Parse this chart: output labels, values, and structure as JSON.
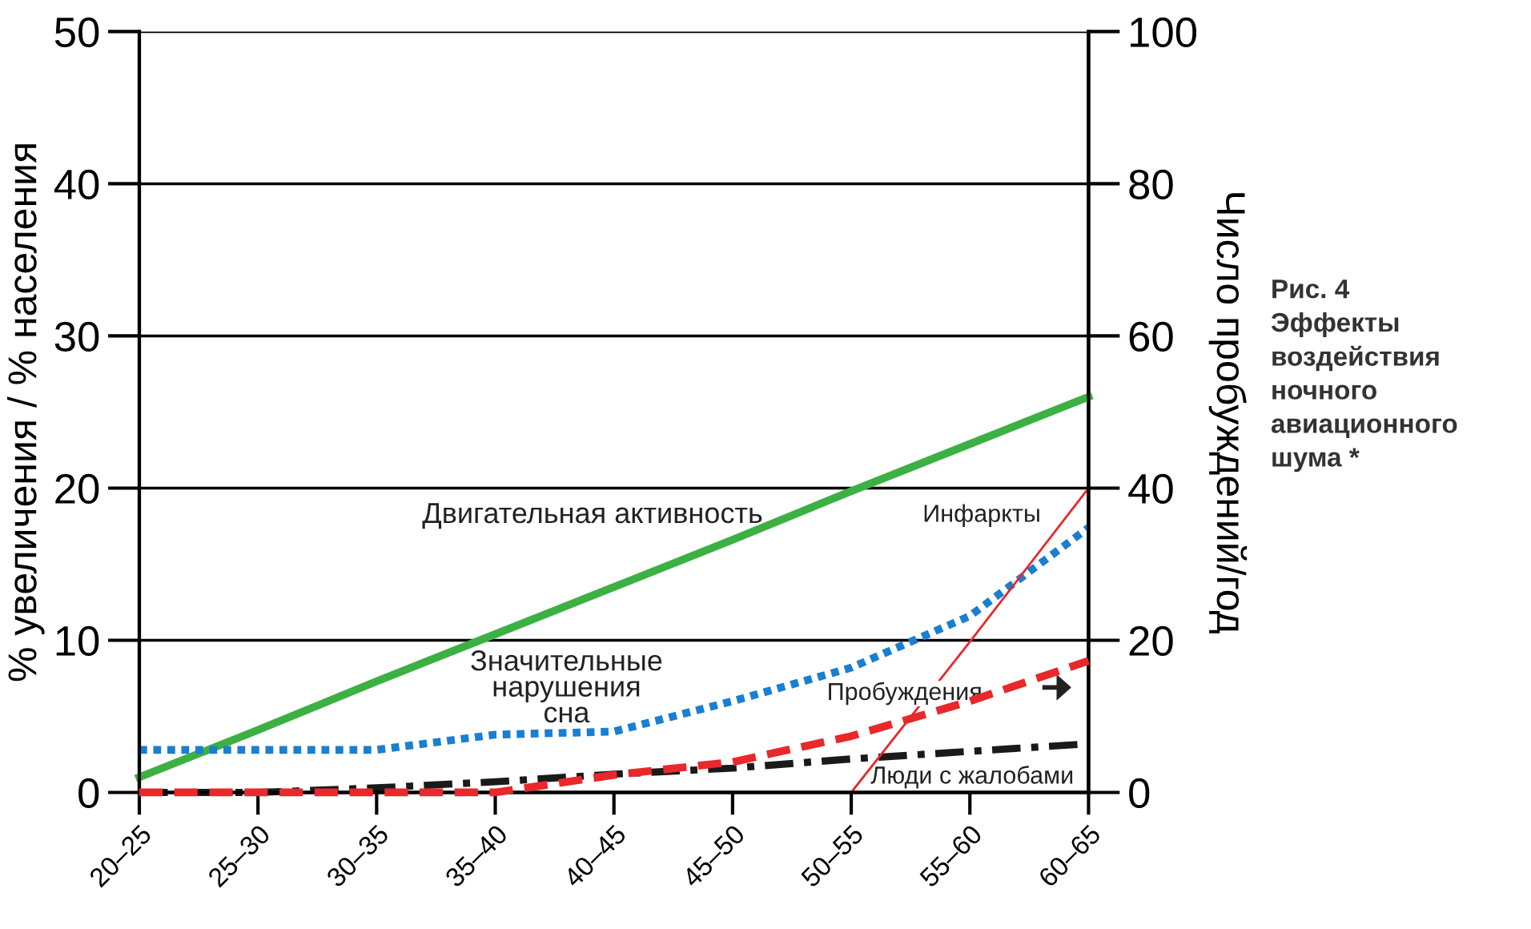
{
  "chart_data": {
    "type": "line",
    "title": "Рис. 4\nЭффекты\nвоздействия\nночного\nавиационного\nшума *",
    "ylabel": "% увеличения / % населения",
    "y2label": "Число пробуждений/год",
    "categories": [
      "20–25",
      "25–30",
      "30–35",
      "35–40",
      "40–45",
      "45–50",
      "50–55",
      "55–60",
      "60–65"
    ],
    "series": [
      {
        "name": "Двигательная активность",
        "color": "#3cb043",
        "line_style": "solid",
        "values": [
          1,
          4.1,
          7.3,
          10.4,
          13.5,
          16.6,
          19.8,
          22.9,
          26
        ]
      },
      {
        "name": "Значительные нарушения сна",
        "color": "#1a7fd0",
        "line_style": "dotted",
        "values": [
          2.8,
          2.8,
          2.8,
          3.8,
          4.0,
          6.0,
          8.2,
          11.6,
          17.4
        ]
      },
      {
        "name": "Пробуждения",
        "color": "#e8282b",
        "line_style": "dashed",
        "axis": "y2",
        "values": [
          0,
          0,
          0,
          0,
          2.3,
          4.0,
          7.4,
          12,
          17.3
        ]
      },
      {
        "name": "Люди с жалобами",
        "color": "#1a1a1a",
        "line_style": "dashdot",
        "values": [
          0,
          0,
          0.3,
          0.7,
          1.2,
          1.6,
          2.2,
          2.7,
          3.2
        ]
      },
      {
        "name": "Инфаркты",
        "color": "#e8282b",
        "line_style": "solid",
        "values": [
          null,
          null,
          null,
          null,
          null,
          null,
          0,
          9.9,
          20
        ]
      }
    ],
    "ylim": [
      0,
      50
    ],
    "yticks": [
      0,
      10,
      20,
      30,
      40,
      50
    ],
    "y2lim": [
      0,
      100
    ],
    "y2ticks": [
      0,
      20,
      40,
      60,
      80,
      100
    ],
    "grid": "y",
    "legend": false,
    "marker": "none"
  }
}
